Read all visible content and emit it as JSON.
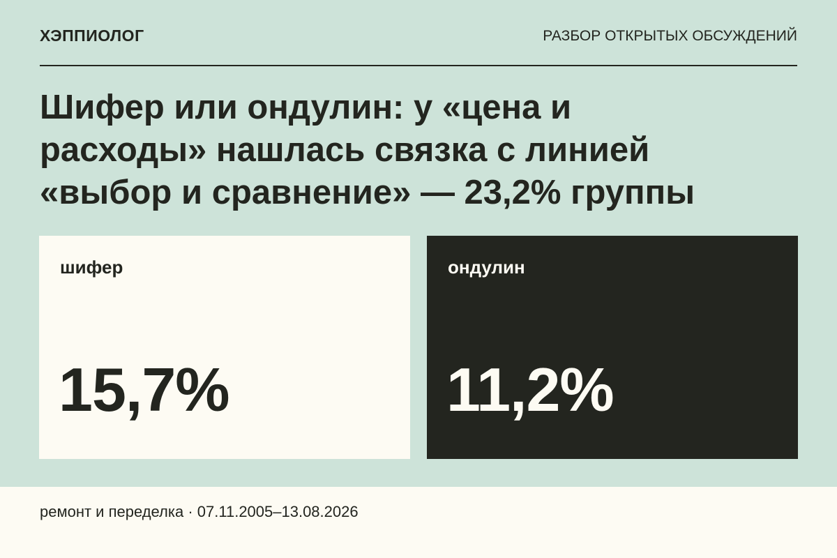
{
  "header": {
    "brand": "ХЭППИОЛОГ",
    "section": "РАЗБОР ОТКРЫТЫХ ОБСУЖДЕНИЙ"
  },
  "title_lines": [
    "Шифер или ондулин: у «цена и",
    "расходы» нашлась связка с линией",
    "«выбор и сравнение» — 23,2% группы"
  ],
  "cards": [
    {
      "label": "шифер",
      "value": "15,7%"
    },
    {
      "label": "ондулин",
      "value": "11,2%"
    }
  ],
  "footer": "ремонт и переделка · 07.11.2005–13.08.2026"
}
